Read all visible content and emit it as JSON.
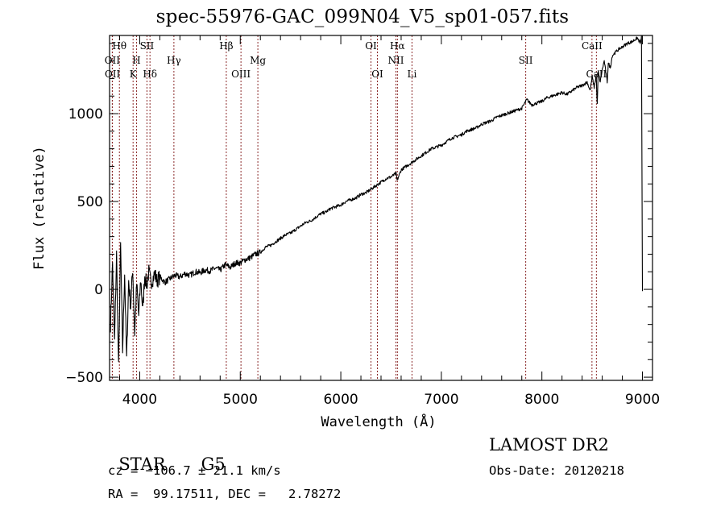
{
  "chart_data": {
    "type": "line",
    "title": "spec-55976-GAC_099N04_V5_sp01-057.fits",
    "xlabel": "Wavelength (Å)",
    "ylabel": "Flux (relative)",
    "xlim": [
      3700,
      9100
    ],
    "ylim": [
      -518,
      1445
    ],
    "x_ticks": [
      4000,
      5000,
      6000,
      7000,
      8000,
      9000
    ],
    "x_tick_labels": [
      "4000",
      "5000",
      "6000",
      "7000",
      "8000",
      "9000"
    ],
    "y_ticks": [
      -500,
      0,
      500,
      1000
    ],
    "y_tick_labels": [
      "−500",
      "0",
      "500",
      "1000"
    ],
    "grid": false,
    "line_color": "#000000",
    "marker_color": "#8b2a2a",
    "spectrum": {
      "x": [
        3710,
        3730,
        3750,
        3770,
        3790,
        3810,
        3830,
        3850,
        3870,
        3890,
        3910,
        3930,
        3950,
        3970,
        3990,
        4010,
        4030,
        4050,
        4070,
        4090,
        4110,
        4130,
        4150,
        4170,
        4200,
        4250,
        4300,
        4350,
        4400,
        4450,
        4500,
        4550,
        4600,
        4650,
        4700,
        4750,
        4800,
        4850,
        4900,
        4950,
        5000,
        5050,
        5100,
        5150,
        5200,
        5250,
        5300,
        5350,
        5400,
        5450,
        5500,
        5550,
        5600,
        5650,
        5700,
        5750,
        5800,
        5850,
        5900,
        5950,
        6000,
        6050,
        6100,
        6150,
        6200,
        6250,
        6300,
        6350,
        6400,
        6450,
        6500,
        6550,
        6560,
        6600,
        6650,
        6700,
        6750,
        6800,
        6850,
        6900,
        6950,
        7000,
        7050,
        7100,
        7150,
        7200,
        7250,
        7300,
        7350,
        7400,
        7450,
        7500,
        7550,
        7600,
        7650,
        7700,
        7750,
        7800,
        7850,
        7900,
        7950,
        8000,
        8050,
        8100,
        8150,
        8200,
        8250,
        8300,
        8350,
        8400,
        8450,
        8480,
        8500,
        8520,
        8540,
        8550,
        8560,
        8580,
        8600,
        8620,
        8650,
        8660,
        8680,
        8700,
        8750,
        8800,
        8850,
        8900,
        8920,
        8950,
        8980,
        8990,
        9000
      ],
      "y": [
        -200,
        150,
        -300,
        200,
        -450,
        250,
        -350,
        100,
        -400,
        50,
        -100,
        120,
        -250,
        30,
        -150,
        60,
        -120,
        80,
        20,
        100,
        40,
        60,
        90,
        50,
        70,
        40,
        60,
        80,
        70,
        90,
        80,
        100,
        95,
        110,
        105,
        120,
        110,
        140,
        125,
        150,
        150,
        170,
        180,
        200,
        210,
        240,
        250,
        270,
        290,
        310,
        320,
        340,
        360,
        380,
        390,
        410,
        430,
        440,
        460,
        470,
        480,
        500,
        510,
        520,
        540,
        550,
        570,
        590,
        610,
        630,
        640,
        660,
        620,
        680,
        700,
        720,
        740,
        760,
        780,
        800,
        810,
        820,
        840,
        860,
        870,
        880,
        900,
        910,
        920,
        940,
        950,
        960,
        980,
        990,
        1000,
        1010,
        1020,
        1030,
        1080,
        1050,
        1060,
        1070,
        1090,
        1100,
        1110,
        1120,
        1110,
        1130,
        1150,
        1160,
        1180,
        1130,
        1210,
        1150,
        1220,
        1050,
        1240,
        1180,
        1250,
        1300,
        1180,
        1290,
        1260,
        1330,
        1360,
        1380,
        1400,
        1410,
        1420,
        1430,
        1400,
        1440,
        -10
      ]
    },
    "lines": [
      {
        "label": "Hθ",
        "wave": 3798,
        "row": 1
      },
      {
        "label": "OII",
        "wave": 3727,
        "row": 2
      },
      {
        "label": "OII",
        "wave": 3729,
        "row": 3
      },
      {
        "label": "H",
        "wave": 3968,
        "row": 2
      },
      {
        "label": "K",
        "wave": 3934,
        "row": 3
      },
      {
        "label": "SII",
        "wave": 4072,
        "row": 1
      },
      {
        "label": "Hδ",
        "wave": 4102,
        "row": 3
      },
      {
        "label": "Hγ",
        "wave": 4340,
        "row": 2
      },
      {
        "label": "Hβ",
        "wave": 4861,
        "row": 1
      },
      {
        "label": "OIII",
        "wave": 5007,
        "row": 3
      },
      {
        "label": "Mg",
        "wave": 5175,
        "row": 2
      },
      {
        "label": "OI",
        "wave": 6300,
        "row": 1
      },
      {
        "label": "OI",
        "wave": 6364,
        "row": 3
      },
      {
        "label": "Hα",
        "wave": 6563,
        "row": 1
      },
      {
        "label": "NII",
        "wave": 6548,
        "row": 2
      },
      {
        "label": "Li",
        "wave": 6708,
        "row": 3
      },
      {
        "label": "SII",
        "wave": 7839,
        "row": 2
      },
      {
        "label": "CaII",
        "wave": 8498,
        "row": 1
      },
      {
        "label": "CaII",
        "wave": 8542,
        "row": 3
      }
    ]
  },
  "info": {
    "class": "STAR",
    "subclass": "G5",
    "cz": "cz = −106.7 ± 21.1 km/s",
    "radec": "RA =  99.17511, DEC =   2.78272",
    "survey": "LAMOST DR2",
    "obs_date": "Obs-Date: 20120218"
  }
}
